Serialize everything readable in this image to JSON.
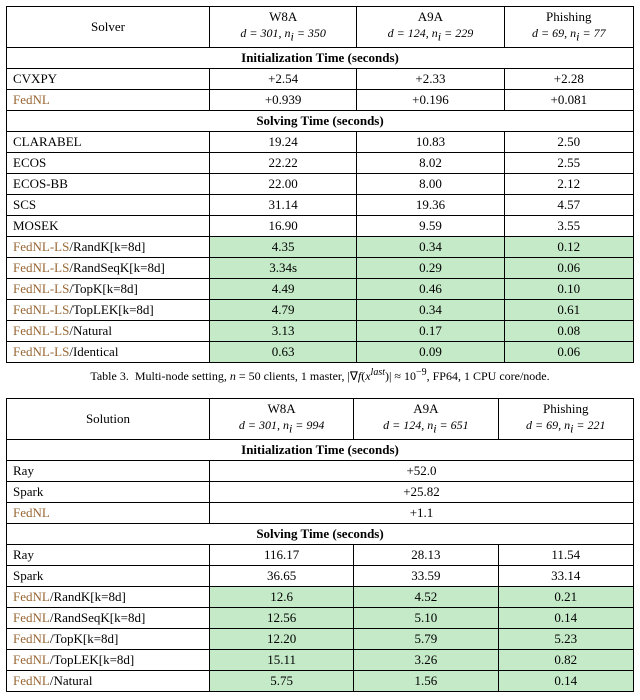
{
  "table3": {
    "col_headers": {
      "solver": "Solver",
      "c1_name": "W8A",
      "c1_sub": "d = 301, n",
      "c1_sub2": " = 350",
      "c2_name": "A9A",
      "c2_sub": "d = 124, n",
      "c2_sub2": " = 229",
      "c3_name": "Phishing",
      "c3_sub": "d = 69, n",
      "c3_sub2": " = 77"
    },
    "section1": "Initialization Time (seconds)",
    "init_rows": [
      {
        "name_a": "CVXPY",
        "name_b": "",
        "v": [
          "+2.54",
          "+2.33",
          "+2.28"
        ],
        "hl": false,
        "fednl_a": false
      },
      {
        "name_a": "FedNL",
        "name_b": "",
        "v": [
          "+0.939",
          "+0.196",
          "+0.081"
        ],
        "hl": false,
        "fednl_a": true
      }
    ],
    "section2": "Solving Time (seconds)",
    "solve_rows": [
      {
        "name_a": "CLARABEL",
        "name_b": "",
        "v": [
          "19.24",
          "10.83",
          "2.50"
        ],
        "hl": false,
        "fednl_a": false
      },
      {
        "name_a": "ECOS",
        "name_b": "",
        "v": [
          "22.22",
          "8.02",
          "2.55"
        ],
        "hl": false,
        "fednl_a": false
      },
      {
        "name_a": "ECOS-BB",
        "name_b": "",
        "v": [
          "22.00",
          "8.00",
          "2.12"
        ],
        "hl": false,
        "fednl_a": false
      },
      {
        "name_a": "SCS",
        "name_b": "",
        "v": [
          "31.14",
          "19.36",
          "4.57"
        ],
        "hl": false,
        "fednl_a": false
      },
      {
        "name_a": "MOSEK",
        "name_b": "",
        "v": [
          "16.90",
          "9.59",
          "3.55"
        ],
        "hl": false,
        "fednl_a": false
      },
      {
        "name_a": "FedNL-LS",
        "name_b": "/RandK[k=8d]",
        "v": [
          "4.35",
          "0.34",
          "0.12"
        ],
        "hl": true,
        "fednl_a": true
      },
      {
        "name_a": "FedNL-LS",
        "name_b": "/RandSeqK[k=8d]",
        "v": [
          "3.34s",
          "0.29",
          "0.06"
        ],
        "hl": true,
        "fednl_a": true
      },
      {
        "name_a": "FedNL-LS",
        "name_b": "/TopK[k=8d]",
        "v": [
          "4.49",
          "0.46",
          "0.10"
        ],
        "hl": true,
        "fednl_a": true
      },
      {
        "name_a": "FedNL-LS",
        "name_b": "/TopLEK[k=8d]",
        "v": [
          "4.79",
          "0.34",
          "0.61"
        ],
        "hl": true,
        "fednl_a": true
      },
      {
        "name_a": "FedNL-LS",
        "name_b": "/Natural",
        "v": [
          "3.13",
          "0.17",
          "0.08"
        ],
        "hl": true,
        "fednl_a": true
      },
      {
        "name_a": "FedNL-LS",
        "name_b": "/Identical",
        "v": [
          "0.63",
          "0.09",
          "0.06"
        ],
        "hl": true,
        "fednl_a": true
      }
    ],
    "caption": "Table 3.  Multi-node setting, n = 50 clients, 1 master, |∇f(xˡᵃˢᵗ)| ≈ 10⁻⁹, FP64, 1 CPU core/node."
  },
  "table4": {
    "col_headers": {
      "solver": "Solution",
      "c1_name": "W8A",
      "c1_sub": "d = 301, n",
      "c1_sub2": " = 994",
      "c2_name": "A9A",
      "c2_sub": "d = 124, n",
      "c2_sub2": " = 651",
      "c3_name": "Phishing",
      "c3_sub": "d = 69, n",
      "c3_sub2": " = 221"
    },
    "section1": "Initialization Time (seconds)",
    "init_rows": [
      {
        "name_a": "Ray",
        "name_b": "",
        "v_span": "+52.0",
        "fednl_a": false
      },
      {
        "name_a": "Spark",
        "name_b": "",
        "v_span": "+25.82",
        "fednl_a": false
      },
      {
        "name_a": "FedNL",
        "name_b": "",
        "v_span": "+1.1",
        "fednl_a": true
      }
    ],
    "section2": "Solving Time (seconds)",
    "solve_rows": [
      {
        "name_a": "Ray",
        "name_b": "",
        "v": [
          "116.17",
          "28.13",
          "11.54"
        ],
        "hl": false,
        "fednl_a": false
      },
      {
        "name_a": "Spark",
        "name_b": "",
        "v": [
          "36.65",
          "33.59",
          "33.14"
        ],
        "hl": false,
        "fednl_a": false
      },
      {
        "name_a": "FedNL",
        "name_b": "/RandK[k=8d]",
        "v": [
          "12.6",
          "4.52",
          "0.21"
        ],
        "hl": true,
        "fednl_a": true
      },
      {
        "name_a": "FedNL",
        "name_b": "/RandSeqK[k=8d]",
        "v": [
          "12.56",
          "5.10",
          "0.14"
        ],
        "hl": true,
        "fednl_a": true
      },
      {
        "name_a": "FedNL",
        "name_b": "/TopK[k=8d]",
        "v": [
          "12.20",
          "5.79",
          "5.23"
        ],
        "hl": true,
        "fednl_a": true
      },
      {
        "name_a": "FedNL",
        "name_b": "/TopLEK[k=8d]",
        "v": [
          "15.11",
          "3.26",
          "0.82"
        ],
        "hl": true,
        "fednl_a": true
      },
      {
        "name_a": "FedNL",
        "name_b": "/Natural",
        "v": [
          "5.75",
          "1.56",
          "0.14"
        ],
        "hl": true,
        "fednl_a": true
      }
    ]
  }
}
